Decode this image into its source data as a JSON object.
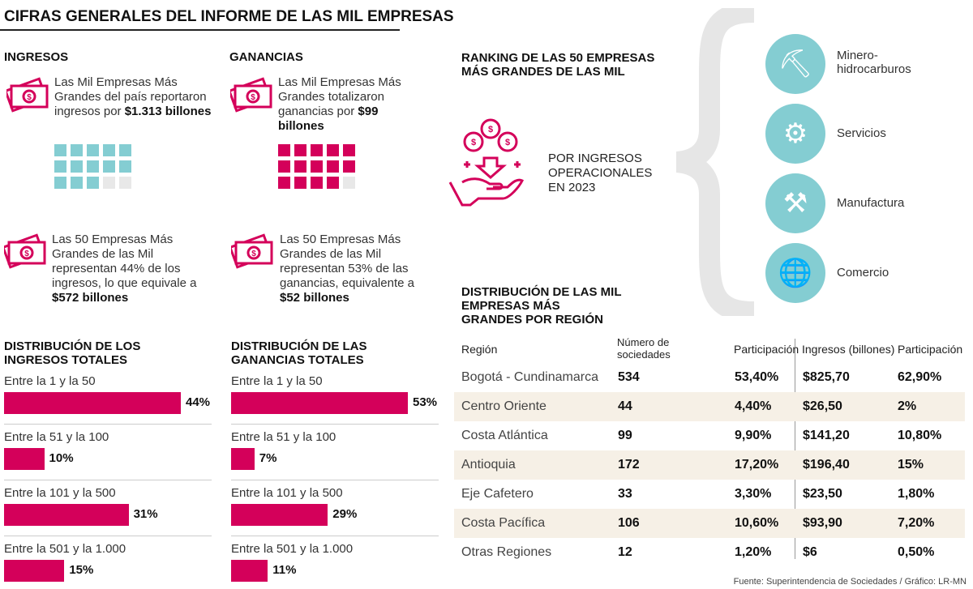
{
  "title": "CIFRAS GENERALES DEL INFORME DE LAS MIL EMPRESAS",
  "ingresos": {
    "heading": "INGRESOS",
    "text1_pre": "Las Mil Empresas Más Grandes del país reportaron ingresos por ",
    "text1_bold": "$1.313 billones",
    "filled": 13,
    "total": 15,
    "text2_pre": "Las 50 Empresas Más Grandes de las Mil representan 44% de los ingresos, lo que equivale a ",
    "text2_bold": "$572 billones"
  },
  "ganancias": {
    "heading": "GANANCIAS",
    "text1_pre": "Las Mil Empresas Más Grandes  totalizaron ganancias por ",
    "text1_bold": "$99 billones",
    "filled": 14,
    "total": 15,
    "text2_pre": "Las 50 Empresas Más Grandes de las Mil representan 53% de las ganancias, equivalente a ",
    "text2_bold": "$52 billones"
  },
  "colors": {
    "pink": "#d4005a",
    "teal": "#84cdd2",
    "empty": "#e8e8e8",
    "rowAlt": "#f6f0e6"
  },
  "ranking": {
    "heading": "RANKING DE LAS 50 EMPRESAS MÁS GRANDES DE LAS MIL",
    "subtitle": "POR INGRESOS OPERACIONALES EN 2023",
    "sectors": [
      {
        "label": "Minero-hidrocarburos",
        "icon": "mining-cart-icon"
      },
      {
        "label": "Servicios",
        "icon": "gear-wrench-icon"
      },
      {
        "label": "Manufactura",
        "icon": "robot-arm-icon"
      },
      {
        "label": "Comercio",
        "icon": "globe-commerce-icon"
      }
    ]
  },
  "chart_data": [
    {
      "type": "bar",
      "title": "DISTRIBUCIÓN DE LOS INGRESOS TOTALES",
      "categories": [
        "Entre la 1 y la 50",
        "Entre la 51 y la 100",
        "Entre la 101 y la 500",
        "Entre la 501 y la 1.000"
      ],
      "values": [
        44,
        10,
        31,
        15
      ],
      "labels": [
        "44%",
        "10%",
        "31%",
        "15%"
      ],
      "unit": "%",
      "orientation": "horizontal"
    },
    {
      "type": "bar",
      "title": "DISTRIBUCIÓN DE LAS GANANCIAS TOTALES",
      "categories": [
        "Entre la 1 y la 50",
        "Entre la 51 y la 100",
        "Entre la 101 y la 500",
        "Entre la 501 y la 1.000"
      ],
      "values": [
        53,
        7,
        29,
        11
      ],
      "labels": [
        "53%",
        "7%",
        "29%",
        "11%"
      ],
      "unit": "%",
      "orientation": "horizontal"
    },
    {
      "type": "table",
      "title": "DISTRIBUCIÓN DE LAS MIL EMPRESAS MÁS GRANDES POR REGIÓN",
      "columns": [
        "Región",
        "Número de sociedades",
        "Participación",
        "Ingresos (billones)",
        "Participación"
      ],
      "rows": [
        [
          "Bogotá - Cundinamarca",
          "534",
          "53,40%",
          "$825,70",
          "62,90%"
        ],
        [
          "Centro Oriente",
          "44",
          "4,40%",
          "$26,50",
          "2%"
        ],
        [
          "Costa Atlántica",
          "99",
          "9,90%",
          "$141,20",
          "10,80%"
        ],
        [
          "Antioquia",
          "172",
          "17,20%",
          "$196,40",
          "15%"
        ],
        [
          "Eje Cafetero",
          "33",
          "3,30%",
          "$23,50",
          "1,80%"
        ],
        [
          "Costa Pacífica",
          "106",
          "10,60%",
          "$93,90",
          "7,20%"
        ],
        [
          "Otras Regiones",
          "12",
          "1,20%",
          "$6",
          "0,50%"
        ]
      ]
    }
  ],
  "footer": "Fuente: Superintendencia de Sociedades / Gráfico: LR-MN"
}
